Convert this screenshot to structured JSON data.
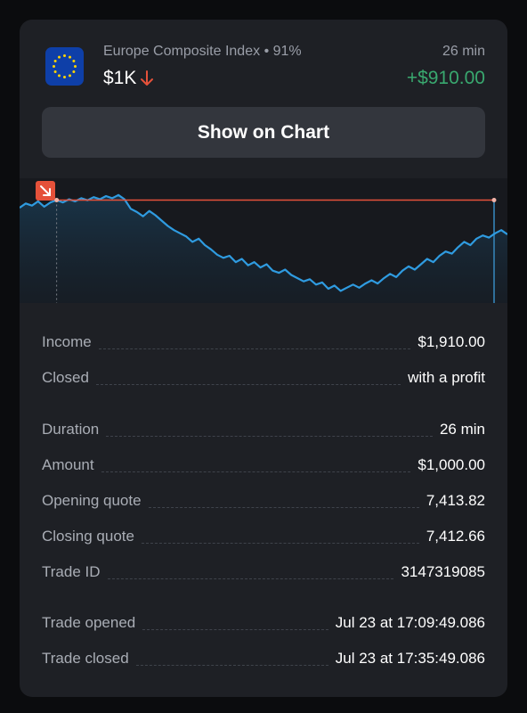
{
  "header": {
    "asset": "Europe Composite Index",
    "payout": "91%",
    "duration": "26 min",
    "amount": "$1K",
    "direction_icon": "arrow-down-icon",
    "profit": "+$910.00"
  },
  "show_chart_label": "Show on Chart",
  "chart_data": {
    "type": "line",
    "series": [
      {
        "values": [
          7413.1,
          7413.5,
          7413.3,
          7413.7,
          7413.2,
          7413.6,
          7413.82,
          7413.6,
          7413.9,
          7413.7,
          7414.0,
          7413.8,
          7414.1,
          7413.9,
          7414.2,
          7414.0,
          7414.3,
          7413.9,
          7413.0,
          7412.7,
          7412.3,
          7412.8,
          7412.4,
          7411.9,
          7411.4,
          7411.0,
          7410.7,
          7410.4,
          7409.9,
          7410.2,
          7409.6,
          7409.2,
          7408.7,
          7408.4,
          7408.6,
          7408.0,
          7408.3,
          7407.7,
          7408.0,
          7407.5,
          7407.8,
          7407.2,
          7407.0,
          7407.3,
          7406.8,
          7406.5,
          7406.2,
          7406.4,
          7405.9,
          7406.1,
          7405.5,
          7405.8,
          7405.3,
          7405.6,
          7405.9,
          7405.6,
          7406.0,
          7406.3,
          7406.0,
          7406.5,
          7406.9,
          7406.6,
          7407.2,
          7407.6,
          7407.3,
          7407.8,
          7408.3,
          7408.0,
          7408.6,
          7409.0,
          7408.8,
          7409.4,
          7409.9,
          7409.6,
          7410.2,
          7410.5,
          7410.3,
          7410.7,
          7411.0,
          7410.6
        ],
        "color": "#2f9be0"
      }
    ],
    "open_quote": 7413.82,
    "direction": "down",
    "line_color": "#e5513a",
    "marker_icon": "arrow-down-right-icon"
  },
  "details": [
    {
      "label": "Income",
      "value": "$1,910.00"
    },
    {
      "label": "Closed",
      "value": "with a profit"
    },
    {
      "label": "Duration",
      "value": "26 min"
    },
    {
      "label": "Amount",
      "value": "$1,000.00"
    },
    {
      "label": "Opening quote",
      "value": "7,413.82"
    },
    {
      "label": "Closing quote",
      "value": "7,412.66"
    },
    {
      "label": "Trade ID",
      "value": "3147319085"
    },
    {
      "label": "Trade opened",
      "value": "Jul 23 at 17:09:49.086"
    },
    {
      "label": "Trade closed",
      "value": "Jul 23 at 17:35:49.086"
    }
  ],
  "colors": {
    "profit": "#39a86f",
    "loss_arrow": "#e5513a",
    "line": "#2f9be0"
  }
}
